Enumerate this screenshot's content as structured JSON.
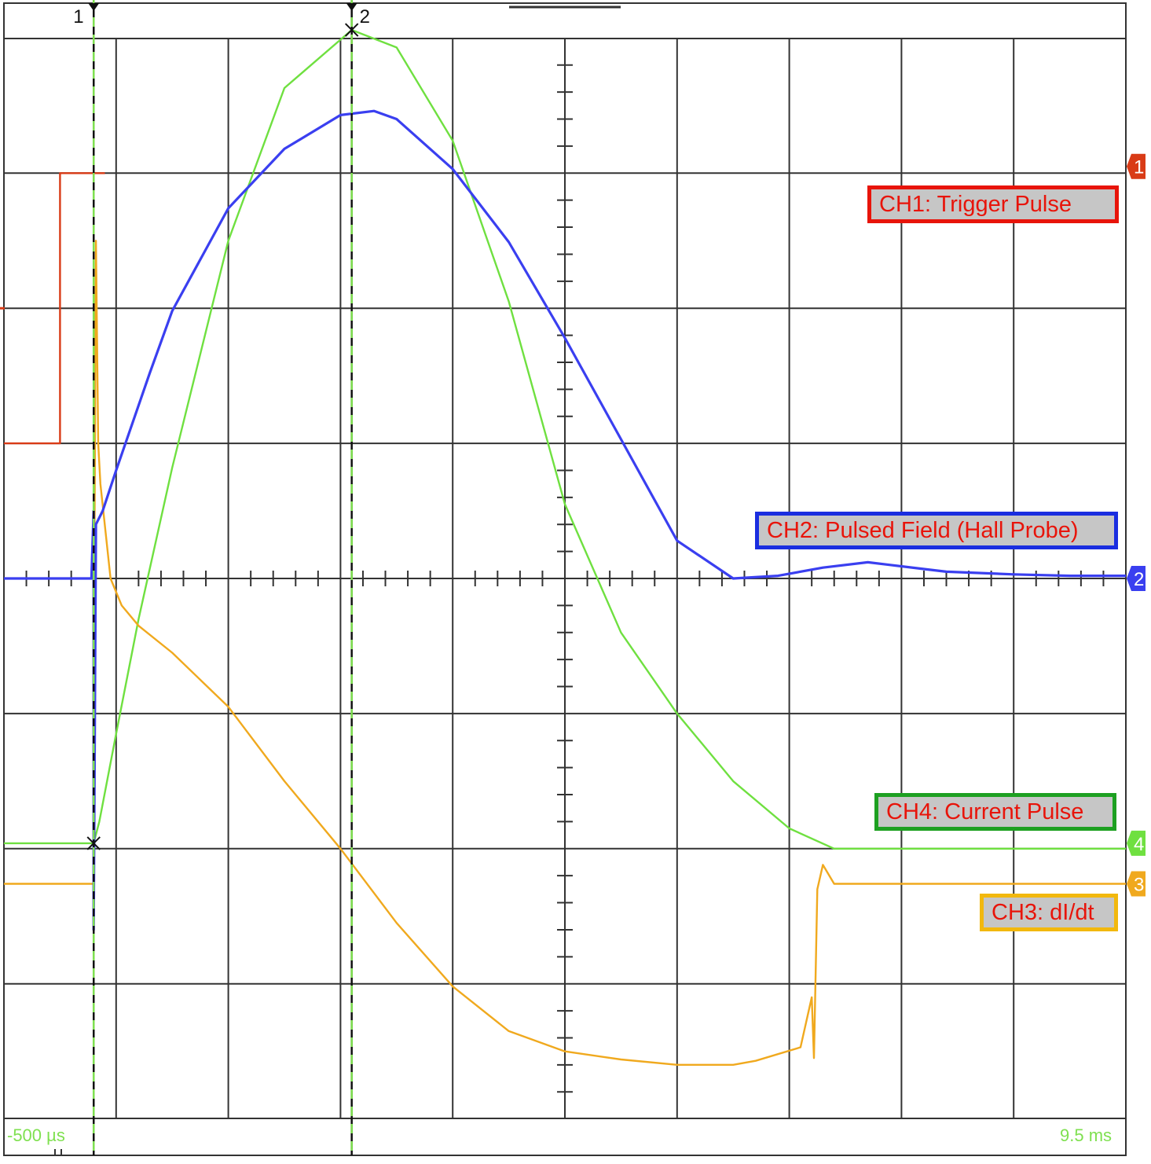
{
  "colors": {
    "ch1": "#d93b16",
    "ch2": "#3a3ff0",
    "ch3": "#f0a91e",
    "ch4": "#6fe040",
    "grid": "#333333",
    "cursor_dash": "#7fe050",
    "label_fill": "#c6c6c6",
    "label_text": "#e8140a"
  },
  "time_axis": {
    "start_label": "-500 µs",
    "end_label": "9.5 ms"
  },
  "cursors": [
    {
      "label": "1",
      "time_ms": 0.3
    },
    {
      "label": "2",
      "time_ms": 2.6
    }
  ],
  "channel_markers": [
    "1",
    "2",
    "3",
    "4"
  ],
  "legend": {
    "ch1": "CH1: Trigger Pulse",
    "ch2": "CH2: Pulsed Field (Hall Probe)",
    "ch3": "CH3: dI/dt",
    "ch4": "CH4: Current Pulse"
  },
  "chart_data": {
    "type": "line",
    "title": "",
    "xlabel": "",
    "ylabel": "",
    "xlim_ms": [
      -0.5,
      9.5
    ],
    "ylim_div": [
      -4,
      4
    ],
    "grid": true,
    "x_divisions": 10,
    "y_divisions": 8,
    "series": [
      {
        "name": "CH1: Trigger Pulse",
        "color_key": "ch1",
        "x": [
          -0.5,
          0.0,
          0.0,
          0.4
        ],
        "y": [
          1.0,
          1.0,
          3.0,
          3.0
        ]
      },
      {
        "name": "CH2: Pulsed Field (Hall Probe)",
        "color_key": "ch2",
        "x": [
          -0.5,
          0.28,
          0.3,
          0.3,
          0.32,
          0.38,
          0.5,
          0.8,
          1.0,
          1.5,
          2.0,
          2.5,
          2.8,
          3.0,
          3.5,
          4.0,
          4.5,
          5.0,
          5.5,
          6.0,
          6.4,
          6.8,
          7.2,
          7.4,
          7.7,
          7.9,
          8.5,
          9.0,
          9.5
        ],
        "y": [
          0.0,
          0.0,
          0.5,
          -2.6,
          0.4,
          0.5,
          0.8,
          1.52,
          1.98,
          2.74,
          3.18,
          3.43,
          3.46,
          3.4,
          3.03,
          2.49,
          1.78,
          1.03,
          0.28,
          0.0,
          0.02,
          0.08,
          0.12,
          0.1,
          0.07,
          0.05,
          0.03,
          0.02,
          0.02
        ]
      },
      {
        "name": "CH3: dI/dt",
        "color_key": "ch3",
        "x": [
          -0.5,
          0.3,
          0.3,
          0.32,
          0.34,
          0.36,
          0.45,
          0.55,
          0.7,
          1.0,
          1.5,
          2.0,
          2.5,
          3.0,
          3.5,
          4.0,
          4.5,
          5.0,
          5.5,
          6.0,
          6.2,
          6.6,
          6.7,
          6.72,
          6.75,
          6.8,
          6.9,
          9.5
        ],
        "y": [
          -2.26,
          -2.26,
          -1.1,
          2.5,
          1.0,
          0.7,
          0.0,
          -0.2,
          -0.35,
          -0.55,
          -0.95,
          -1.5,
          -2.0,
          -2.55,
          -3.02,
          -3.35,
          -3.5,
          -3.56,
          -3.6,
          -3.6,
          -3.57,
          -3.47,
          -3.1,
          -3.55,
          -2.3,
          -2.12,
          -2.26,
          -2.26
        ]
      },
      {
        "name": "CH4: Current Pulse",
        "color_key": "ch4",
        "x": [
          -0.5,
          0.3,
          0.35,
          0.5,
          0.7,
          1.0,
          1.5,
          2.0,
          2.6,
          3.0,
          3.5,
          4.0,
          4.5,
          5.0,
          5.5,
          6.0,
          6.5,
          6.9,
          9.5
        ],
        "y": [
          -1.96,
          -1.96,
          -1.8,
          -1.15,
          -0.3,
          0.82,
          2.5,
          3.63,
          4.06,
          3.93,
          3.24,
          2.05,
          0.55,
          -0.4,
          -1.0,
          -1.5,
          -1.85,
          -2.0,
          -2.0
        ]
      }
    ]
  }
}
